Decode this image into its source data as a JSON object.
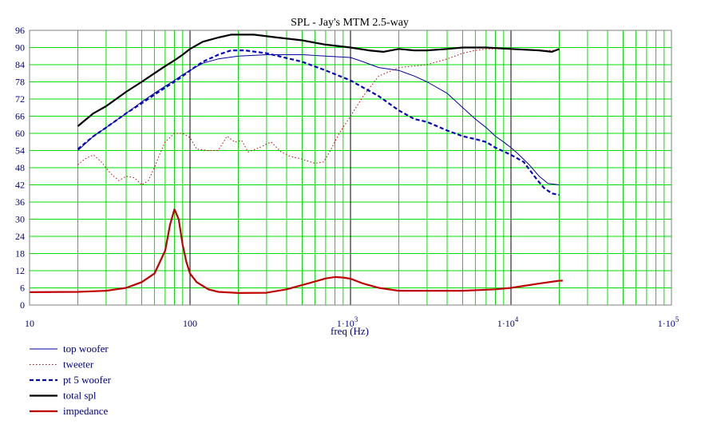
{
  "chart_data": {
    "type": "line",
    "title": "SPL - Jay's MTM 2.5-way",
    "xlabel": "freq (Hz)",
    "ylabel": "",
    "x_scale": "log",
    "xlim": [
      10,
      100000
    ],
    "ylim": [
      0,
      96
    ],
    "grid": true,
    "legend_position": "bottom-left",
    "x_tick_labels": [
      {
        "value": 10,
        "label": "10"
      },
      {
        "value": 100,
        "label": "100"
      },
      {
        "value": 1000,
        "label": "1·10",
        "exp": "3"
      },
      {
        "value": 10000,
        "label": "1·10",
        "exp": "4"
      },
      {
        "value": 100000,
        "label": "1·10",
        "exp": "5"
      }
    ],
    "y_ticks": [
      0,
      6,
      12,
      18,
      24,
      30,
      36,
      42,
      48,
      54,
      60,
      66,
      72,
      78,
      84,
      90,
      96
    ],
    "series": [
      {
        "name": "top woofer",
        "color": "#0000a0",
        "style": "solid",
        "width": 1,
        "points": [
          [
            20,
            54
          ],
          [
            25,
            59
          ],
          [
            30,
            62
          ],
          [
            40,
            67
          ],
          [
            50,
            71
          ],
          [
            60,
            74
          ],
          [
            70,
            76.5
          ],
          [
            80,
            78.5
          ],
          [
            90,
            80.5
          ],
          [
            100,
            82
          ],
          [
            120,
            84.5
          ],
          [
            150,
            86
          ],
          [
            200,
            87
          ],
          [
            300,
            87.5
          ],
          [
            500,
            87.5
          ],
          [
            700,
            87
          ],
          [
            1000,
            86.5
          ],
          [
            1200,
            85
          ],
          [
            1500,
            83
          ],
          [
            2000,
            82
          ],
          [
            2500,
            80
          ],
          [
            3000,
            78
          ],
          [
            4000,
            74
          ],
          [
            5000,
            69
          ],
          [
            6000,
            65
          ],
          [
            7000,
            62
          ],
          [
            8000,
            59
          ],
          [
            9000,
            57
          ],
          [
            10000,
            55
          ],
          [
            11000,
            53
          ],
          [
            13000,
            49
          ],
          [
            15000,
            45
          ],
          [
            17000,
            42.5
          ],
          [
            20000,
            42
          ]
        ]
      },
      {
        "name": "tweeter",
        "color": "#c00000",
        "style": "dotted",
        "width": 1,
        "points": [
          [
            20,
            49
          ],
          [
            22,
            51
          ],
          [
            25,
            52.5
          ],
          [
            28,
            50
          ],
          [
            32,
            46
          ],
          [
            36,
            43.5
          ],
          [
            40,
            45
          ],
          [
            45,
            44.5
          ],
          [
            50,
            42
          ],
          [
            55,
            43.5
          ],
          [
            60,
            48
          ],
          [
            65,
            53
          ],
          [
            70,
            57
          ],
          [
            80,
            60
          ],
          [
            90,
            60
          ],
          [
            100,
            58.5
          ],
          [
            110,
            54.5
          ],
          [
            130,
            54
          ],
          [
            150,
            54
          ],
          [
            170,
            59
          ],
          [
            190,
            57
          ],
          [
            210,
            57.5
          ],
          [
            230,
            53.5
          ],
          [
            270,
            55
          ],
          [
            320,
            57
          ],
          [
            370,
            53.5
          ],
          [
            420,
            52
          ],
          [
            500,
            51
          ],
          [
            600,
            49.5
          ],
          [
            680,
            50
          ],
          [
            750,
            54
          ],
          [
            850,
            60
          ],
          [
            1000,
            66
          ],
          [
            1200,
            73
          ],
          [
            1500,
            80
          ],
          [
            2000,
            83
          ],
          [
            3000,
            84
          ],
          [
            4000,
            86
          ],
          [
            5000,
            88
          ],
          [
            6000,
            89
          ],
          [
            7000,
            89.5
          ],
          [
            10000,
            89.5
          ],
          [
            15000,
            89
          ],
          [
            20000,
            89
          ]
        ]
      },
      {
        "name": "pt 5 woofer",
        "color": "#0000c0",
        "style": "dashed",
        "width": 2.2,
        "points": [
          [
            20,
            54.5
          ],
          [
            25,
            59
          ],
          [
            30,
            62
          ],
          [
            40,
            67
          ],
          [
            50,
            70.5
          ],
          [
            60,
            73.5
          ],
          [
            70,
            76
          ],
          [
            80,
            78
          ],
          [
            90,
            80
          ],
          [
            100,
            82
          ],
          [
            120,
            85
          ],
          [
            150,
            87.5
          ],
          [
            180,
            89
          ],
          [
            220,
            89
          ],
          [
            300,
            88
          ],
          [
            500,
            85
          ],
          [
            700,
            82
          ],
          [
            1000,
            78.5
          ],
          [
            1200,
            76
          ],
          [
            1500,
            73
          ],
          [
            2000,
            68
          ],
          [
            2500,
            65
          ],
          [
            3000,
            64
          ],
          [
            4000,
            61
          ],
          [
            5000,
            59
          ],
          [
            6000,
            58
          ],
          [
            7000,
            57
          ],
          [
            8000,
            55
          ],
          [
            10000,
            52.5
          ],
          [
            12000,
            50
          ],
          [
            14000,
            45
          ],
          [
            16000,
            41
          ],
          [
            18000,
            39
          ],
          [
            20000,
            38.5
          ]
        ]
      },
      {
        "name": "total spl",
        "color": "#000000",
        "style": "solid",
        "width": 2.2,
        "points": [
          [
            20,
            62.5
          ],
          [
            25,
            67
          ],
          [
            30,
            69.5
          ],
          [
            40,
            74.5
          ],
          [
            50,
            78
          ],
          [
            60,
            81
          ],
          [
            70,
            83.5
          ],
          [
            80,
            85.5
          ],
          [
            90,
            87.5
          ],
          [
            100,
            89.5
          ],
          [
            120,
            92
          ],
          [
            150,
            93.5
          ],
          [
            180,
            94.5
          ],
          [
            250,
            94.5
          ],
          [
            350,
            93.5
          ],
          [
            500,
            92.5
          ],
          [
            700,
            91
          ],
          [
            1000,
            90
          ],
          [
            1300,
            89
          ],
          [
            1600,
            88.5
          ],
          [
            2000,
            89.5
          ],
          [
            2500,
            89
          ],
          [
            3000,
            89
          ],
          [
            4000,
            89.5
          ],
          [
            5000,
            90
          ],
          [
            7000,
            90
          ],
          [
            10000,
            89.5
          ],
          [
            15000,
            89
          ],
          [
            18000,
            88.5
          ],
          [
            20000,
            89.5
          ]
        ]
      },
      {
        "name": "impedance",
        "color": "#c00000",
        "style": "solid",
        "width": 2.2,
        "points": [
          [
            10,
            4.5
          ],
          [
            20,
            4.6
          ],
          [
            30,
            5
          ],
          [
            40,
            6
          ],
          [
            50,
            8
          ],
          [
            60,
            11
          ],
          [
            70,
            19
          ],
          [
            75,
            28
          ],
          [
            80,
            33.5
          ],
          [
            85,
            30
          ],
          [
            90,
            21
          ],
          [
            95,
            15
          ],
          [
            100,
            11
          ],
          [
            110,
            8
          ],
          [
            130,
            5.5
          ],
          [
            150,
            4.6
          ],
          [
            200,
            4.2
          ],
          [
            300,
            4.3
          ],
          [
            400,
            5.5
          ],
          [
            500,
            7
          ],
          [
            600,
            8.2
          ],
          [
            700,
            9.3
          ],
          [
            800,
            9.8
          ],
          [
            900,
            9.6
          ],
          [
            1000,
            9.2
          ],
          [
            1200,
            7.5
          ],
          [
            1500,
            6
          ],
          [
            2000,
            5
          ],
          [
            3000,
            5
          ],
          [
            5000,
            5
          ],
          [
            8000,
            5.5
          ],
          [
            10000,
            6
          ],
          [
            15000,
            7.5
          ],
          [
            20000,
            8.5
          ],
          [
            21000,
            8.5
          ]
        ]
      }
    ]
  }
}
